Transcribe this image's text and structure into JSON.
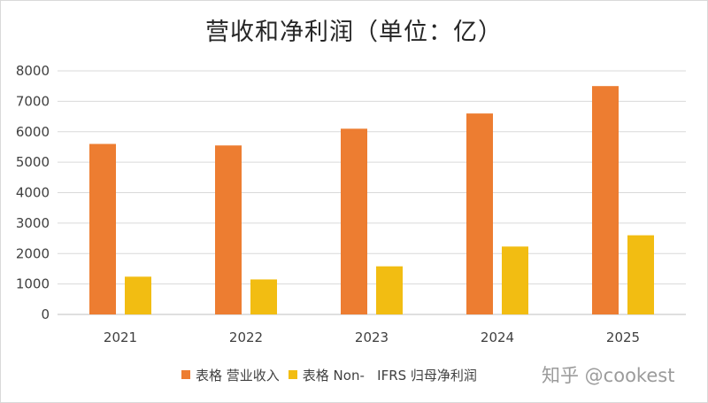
{
  "chart_data": {
    "type": "bar",
    "title": "营收和净利润（单位：亿）",
    "categories": [
      "2021",
      "2022",
      "2023",
      "2024",
      "2025"
    ],
    "series": [
      {
        "name": "表格 营业收入",
        "values": [
          5600,
          5550,
          6100,
          6600,
          7500
        ],
        "color": "#ED7D31"
      },
      {
        "name": "表格 Non- IFRS 归母净利润",
        "values": [
          1240,
          1150,
          1580,
          2230,
          2600
        ],
        "color": "#F2BD12"
      }
    ],
    "ylim": [
      0,
      8000
    ],
    "yticks": [
      "0",
      "1000",
      "2000",
      "3000",
      "4000",
      "5000",
      "6000",
      "7000",
      "8000"
    ],
    "grid": true,
    "legend_position": "bottom"
  },
  "legend": {
    "item1": "表格 营业收入",
    "item2": "表格 Non-   IFRS 归母净利润"
  },
  "watermark": "知乎 @cookest"
}
